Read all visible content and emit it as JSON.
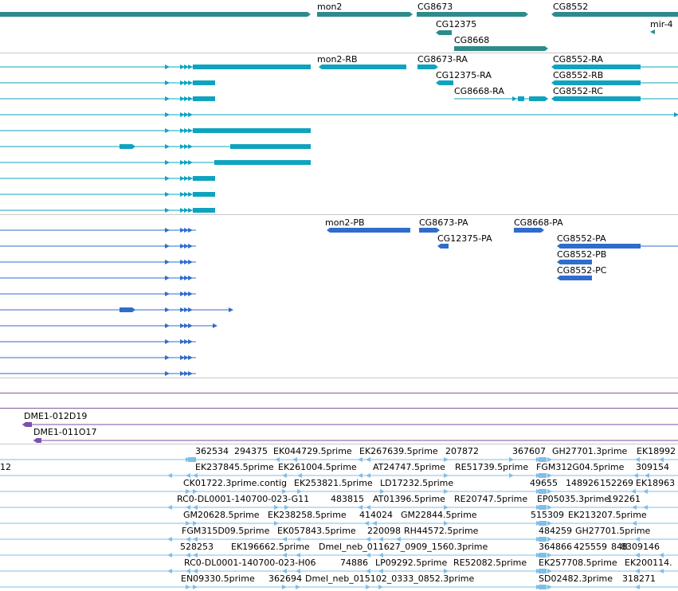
{
  "colors": {
    "gene": "#2e8b8b",
    "transcript_flybase": "#0fa3bf",
    "transcript_alt": "#2f6ccc",
    "clone": "#7a4fae",
    "est": "#7fbfe6",
    "divider": "#c8c8c8",
    "purple_line": "#8a5a9a"
  },
  "gene_track": {
    "labels": [
      "mon2",
      "CG8673",
      "CG8552",
      "CG12375",
      "mir-4",
      "CG8668"
    ]
  },
  "transcript_track_1": {
    "labels": [
      "mon2-RB",
      "CG8673-RA",
      "CG8552-RA",
      "CG12375-RA",
      "CG8552-RB",
      "CG8668-RA",
      "CG8552-RC"
    ]
  },
  "transcript_track_2": {
    "labels": [
      "mon2-PB",
      "CG8673-PA",
      "CG8668-PA",
      "CG12375-PA",
      "CG8552-PA",
      "CG8552-PB",
      "CG8552-PC"
    ]
  },
  "clone_track": {
    "labels": [
      "DME1-012D19",
      "DME1-011O17"
    ]
  },
  "est_track": {
    "labels": [
      "362534",
      "294375",
      "EK044729.5prime",
      "EK267639.5prime",
      "207872",
      "367607",
      "GH27701.3prime",
      "EK18992",
      "12",
      "EK237845.5prime",
      "EK261004.5prime",
      "AT24747.5prime",
      "RE51739.5prime",
      "FGM312G04.5prime",
      "309154",
      "CK01722.3prime.contig",
      "EK253821.5prime",
      "LD17232.5prime",
      "49655",
      "148926",
      "152269",
      "EK18963",
      "RC0-DL0001-140700-023-G11",
      "483815",
      "AT01396.5prime",
      "RE20747.5prime",
      "EP05035.3prime",
      "192261",
      "GM20628.5prime",
      "EK238258.5prime",
      "414024",
      "GM22844.5prime",
      "515309",
      "EK213207.5prime",
      "FGM315D09.5prime",
      "EK057843.5prime",
      "220098",
      "RH44572.5prime",
      "484259",
      "GH27701.5prime",
      "528253",
      "EK196662.5prime",
      "Dmel_neb_011627_0909_1560.3prime",
      "364866",
      "425559",
      "848",
      "8309146",
      "RC0-DL0001-140700-023-H06",
      "74886",
      "LP09292.5prime",
      "RE52082.5prime",
      "EK257708.5prime",
      "EK200114.",
      "EN09330.5prime",
      "362694",
      "Dmel_neb_015102_0333_0852.3prime",
      "SD02482.3prime",
      "318271"
    ]
  }
}
